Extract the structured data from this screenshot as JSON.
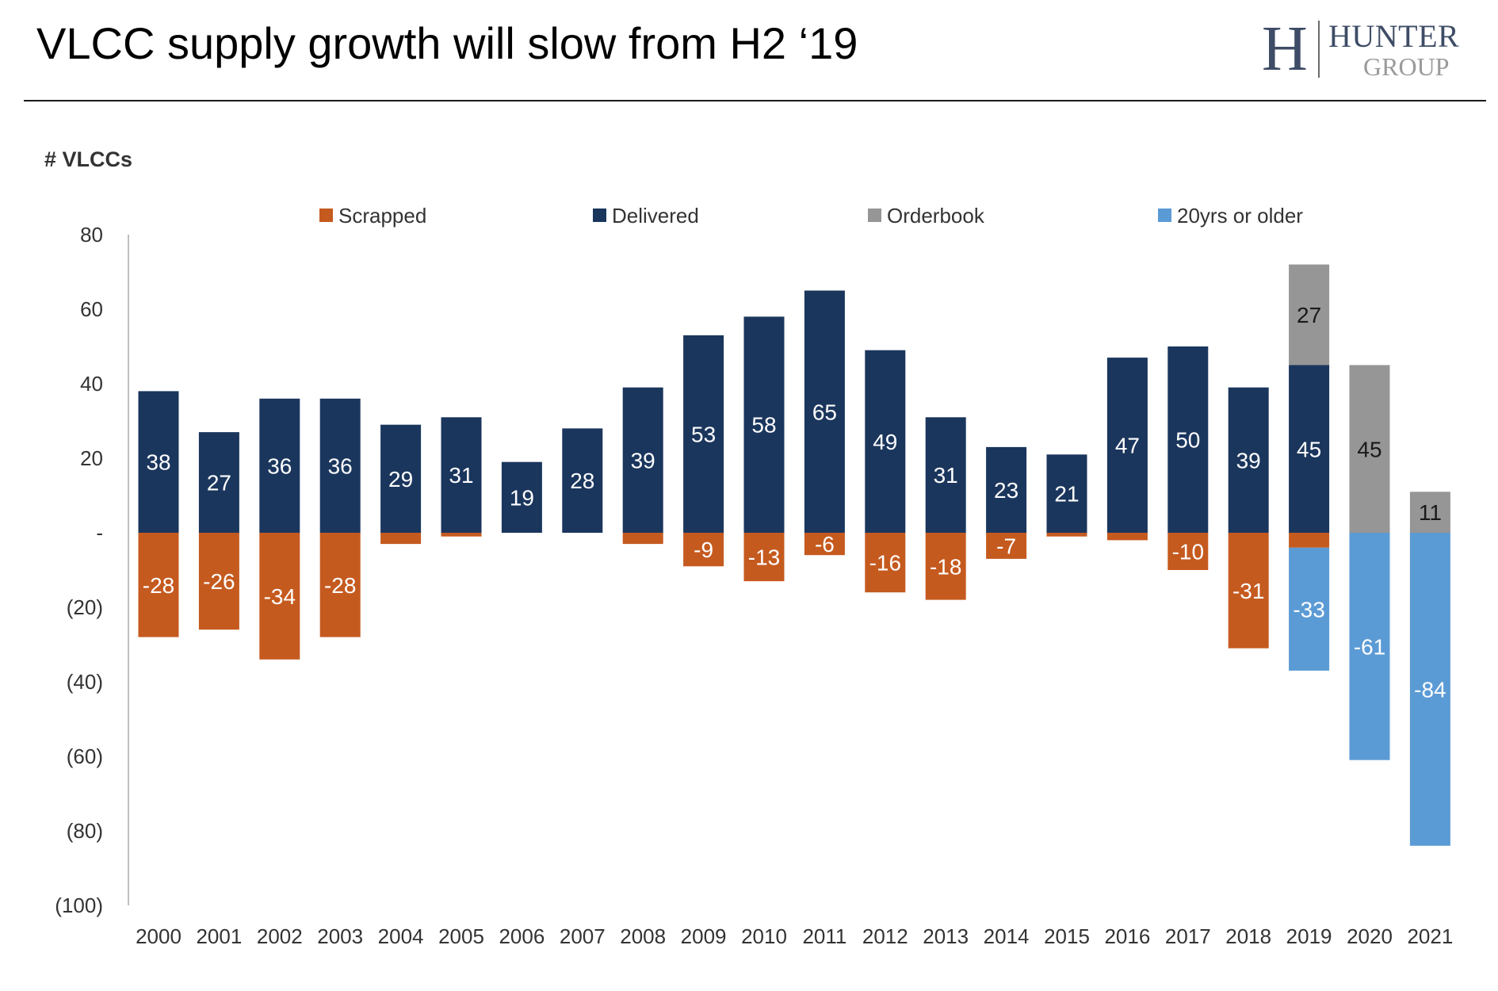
{
  "title": "VLCC supply growth will slow from H2 ‘19",
  "logo": {
    "mark": "H",
    "word1": "HUNTER",
    "word2": "GROUP"
  },
  "colors": {
    "scrapped": "#c55a1f",
    "delivered": "#1b365d",
    "orderbook": "#969696",
    "older": "#5b9bd5",
    "axis": "#bfbfbf",
    "label_dark": "#1a1a1a",
    "label_light": "#ffffff"
  },
  "chart_data": {
    "type": "bar",
    "stacked": true,
    "title": "",
    "ylabel": "# VLCCs",
    "xlabel": "",
    "ylim": [
      -100,
      80
    ],
    "yticks": [
      80,
      60,
      40,
      20,
      0,
      -20,
      -40,
      -60,
      -80,
      -100
    ],
    "ytick_labels": [
      "80",
      "60",
      "40",
      "20",
      "-",
      "(20)",
      "(40)",
      "(60)",
      "(80)",
      "(100)"
    ],
    "legend_position": "top",
    "categories": [
      "2000",
      "2001",
      "2002",
      "2003",
      "2004",
      "2005",
      "2006",
      "2007",
      "2008",
      "2009",
      "2010",
      "2011",
      "2012",
      "2013",
      "2014",
      "2015",
      "2016",
      "2017",
      "2018",
      "2019",
      "2020",
      "2021"
    ],
    "series": [
      {
        "name": "Scrapped",
        "color_key": "scrapped",
        "values": [
          -28,
          -26,
          -34,
          -28,
          -3,
          -1,
          0,
          0,
          -3,
          -9,
          -13,
          -6,
          -16,
          -18,
          -7,
          -1,
          -2,
          -10,
          -31,
          -4,
          0,
          0
        ],
        "labels": [
          "-28",
          "-26",
          "-34",
          "-28",
          "",
          "",
          "",
          "",
          "",
          "-9",
          "-13",
          "-6",
          "-16",
          "-18",
          "-7",
          "",
          "",
          "-10",
          "-31",
          "",
          "",
          ""
        ]
      },
      {
        "name": "Delivered",
        "color_key": "delivered",
        "values": [
          38,
          27,
          36,
          36,
          29,
          31,
          19,
          28,
          39,
          53,
          58,
          65,
          49,
          31,
          23,
          21,
          47,
          50,
          39,
          45,
          0,
          0
        ],
        "labels": [
          "38",
          "27",
          "36",
          "36",
          "29",
          "31",
          "19",
          "28",
          "39",
          "53",
          "58",
          "65",
          "49",
          "31",
          "23",
          "21",
          "47",
          "50",
          "39",
          "45",
          "",
          ""
        ]
      },
      {
        "name": "Orderbook",
        "color_key": "orderbook",
        "values": [
          0,
          0,
          0,
          0,
          0,
          0,
          0,
          0,
          0,
          0,
          0,
          0,
          0,
          0,
          0,
          0,
          0,
          0,
          0,
          27,
          45,
          11
        ],
        "labels": [
          "",
          "",
          "",
          "",
          "",
          "",
          "",
          "",
          "",
          "",
          "",
          "",
          "",
          "",
          "",
          "",
          "",
          "",
          "",
          "27",
          "45",
          "11"
        ]
      },
      {
        "name": "20yrs or older",
        "color_key": "older",
        "values": [
          0,
          0,
          0,
          0,
          0,
          0,
          0,
          0,
          0,
          0,
          0,
          0,
          0,
          0,
          0,
          0,
          0,
          0,
          0,
          -33,
          -61,
          -84
        ],
        "labels": [
          "",
          "",
          "",
          "",
          "",
          "",
          "",
          "",
          "",
          "",
          "",
          "",
          "",
          "",
          "",
          "",
          "",
          "",
          "",
          "-33",
          "-61",
          "-84"
        ]
      }
    ]
  }
}
